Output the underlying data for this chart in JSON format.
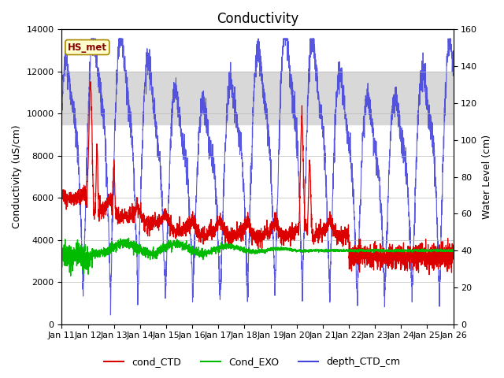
{
  "title": "Conductivity",
  "ylabel_left": "Conductivity (uS/cm)",
  "ylabel_right": "Water Level (cm)",
  "ylim_left": [
    0,
    14000
  ],
  "ylim_right": [
    0,
    160
  ],
  "xlim": [
    0,
    15
  ],
  "xtick_labels": [
    "Jan 11",
    "Jan 12",
    "Jan 13",
    "Jan 14",
    "Jan 15",
    "Jan 16",
    "Jan 17",
    "Jan 18",
    "Jan 19",
    "Jan 20",
    "Jan 21",
    "Jan 22",
    "Jan 23",
    "Jan 24",
    "Jan 25",
    "Jan 26"
  ],
  "xtick_positions": [
    0,
    1,
    2,
    3,
    4,
    5,
    6,
    7,
    8,
    9,
    10,
    11,
    12,
    13,
    14,
    15
  ],
  "shade_ymin": 9500,
  "shade_ymax": 12000,
  "color_red": "#dd0000",
  "color_green": "#00bb00",
  "color_blue": "#4444dd",
  "legend_labels": [
    "cond_CTD",
    "Cond_EXO",
    "depth_CTD_cm"
  ],
  "hs_met_label": "HS_met",
  "background_color": "#ffffff",
  "shade_color": "#d8d8d8",
  "title_fontsize": 12,
  "axis_label_fontsize": 9,
  "tick_fontsize": 8
}
